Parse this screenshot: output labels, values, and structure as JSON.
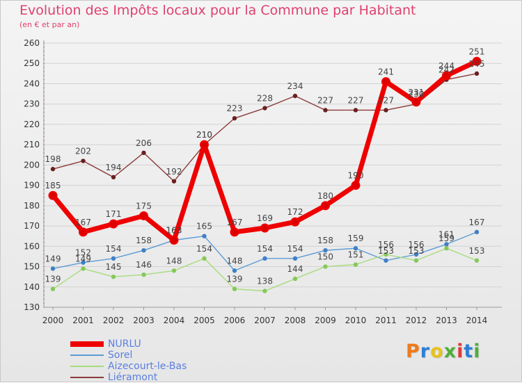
{
  "header": {
    "title": "Evolution des Impôts locaux pour la Commune par Habitant",
    "subtitle": "(en € et par an)"
  },
  "logo": {
    "text": "Proxiti",
    "colors": [
      "#f07a1a",
      "#2c7fd6",
      "#e8c21a",
      "#4fae3a",
      "#e03a3a",
      "#2c7fd6",
      "#4fae3a"
    ]
  },
  "chart_data": {
    "type": "line",
    "title": "Evolution des Impôts locaux pour la Commune par Habitant",
    "subtitle": "(en € et par an)",
    "xlabel": "",
    "ylabel": "",
    "x": [
      2000,
      2001,
      2002,
      2003,
      2004,
      2005,
      2006,
      2007,
      2008,
      2009,
      2010,
      2011,
      2012,
      2013,
      2014
    ],
    "ylim": [
      130,
      260
    ],
    "yticks": [
      130,
      140,
      150,
      160,
      170,
      180,
      190,
      200,
      210,
      220,
      230,
      240,
      250,
      260
    ],
    "grid": "horizontal",
    "legend_position": "bottom-left",
    "series": [
      {
        "name": "NURLU",
        "color": "#ee0000",
        "marker": "#dd0000",
        "emphasis": true,
        "values": [
          185,
          167,
          171,
          175,
          163,
          210,
          167,
          169,
          172,
          180,
          190,
          241,
          231,
          244,
          251
        ],
        "labels": [
          "185",
          "167",
          "171",
          "175",
          "163",
          "210",
          "167",
          "169",
          "172",
          "180",
          "190",
          "241",
          "231",
          "244",
          "251"
        ]
      },
      {
        "name": "Sorel",
        "color": "#5b9bd5",
        "marker": "#3f80c8",
        "emphasis": false,
        "values": [
          149,
          152,
          154,
          158,
          163,
          165,
          148,
          154,
          154,
          158,
          159,
          153,
          156,
          161,
          167
        ],
        "labels": [
          "149",
          "152",
          "154",
          "158",
          "163",
          "165",
          "148",
          "154",
          "154",
          "158",
          "159",
          "153",
          "156",
          "161",
          "167"
        ]
      },
      {
        "name": "Aizecourt-le-Bas",
        "color": "#a6dc7c",
        "marker": "#86c85a",
        "emphasis": false,
        "values": [
          139,
          149,
          145,
          146,
          148,
          154,
          139,
          138,
          144,
          150,
          151,
          156,
          153,
          159,
          153
        ],
        "labels": [
          "139",
          "149",
          "145",
          "146",
          "148",
          "154",
          "139",
          "138",
          "144",
          "150",
          "151",
          "156",
          "153",
          "159",
          "153"
        ]
      },
      {
        "name": "Liéramont",
        "color": "#8b3a3a",
        "marker": "#6b1f1f",
        "emphasis": false,
        "values": [
          198,
          202,
          194,
          206,
          192,
          210,
          223,
          228,
          234,
          227,
          227,
          227,
          230,
          242,
          245
        ],
        "labels": [
          "198",
          "202",
          "194",
          "206",
          "192",
          "210",
          "223",
          "228",
          "234",
          "227",
          "227",
          "227",
          "230",
          "242",
          "245"
        ]
      }
    ]
  }
}
